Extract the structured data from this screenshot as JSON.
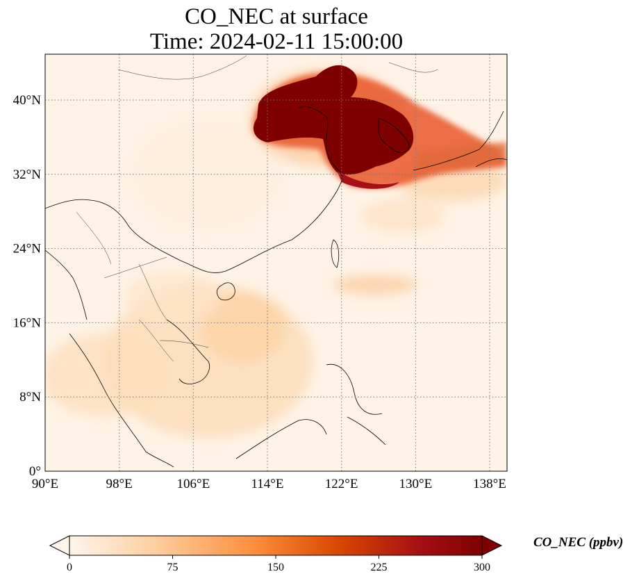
{
  "title_line1": "CO_NEC at surface",
  "title_line2": "Time: 2024-02-11 15:00:00",
  "map": {
    "lon_range": [
      90,
      140
    ],
    "lat_range": [
      0,
      44
    ],
    "lon_ticks": [
      {
        "value": 90,
        "label": "90°E"
      },
      {
        "value": 98,
        "label": "98°E"
      },
      {
        "value": 106,
        "label": "106°E"
      },
      {
        "value": 114,
        "label": "114°E"
      },
      {
        "value": 122,
        "label": "122°E"
      },
      {
        "value": 130,
        "label": "130°E"
      },
      {
        "value": 138,
        "label": "138°E"
      }
    ],
    "lat_ticks": [
      {
        "value": 0,
        "label": "0°"
      },
      {
        "value": 8,
        "label": "8°N"
      },
      {
        "value": 16,
        "label": "16°N"
      },
      {
        "value": 24,
        "label": "24°N"
      },
      {
        "value": 32,
        "label": "32°N"
      },
      {
        "value": 40,
        "label": "40°N"
      }
    ],
    "gridlines": true
  },
  "colorbar": {
    "label": "CO_NEC (ppbv)",
    "colormap": [
      "#fff5eb",
      "#fdd0a2",
      "#fd8d3c",
      "#d94801",
      "#a50f15",
      "#7f0000"
    ],
    "min": 0,
    "max": 300,
    "extend": "both",
    "ticks": [
      {
        "value": 0,
        "label": "0"
      },
      {
        "value": 75,
        "label": "75"
      },
      {
        "value": 150,
        "label": "150"
      },
      {
        "value": 225,
        "label": "225"
      },
      {
        "value": 300,
        "label": "300"
      }
    ]
  }
}
